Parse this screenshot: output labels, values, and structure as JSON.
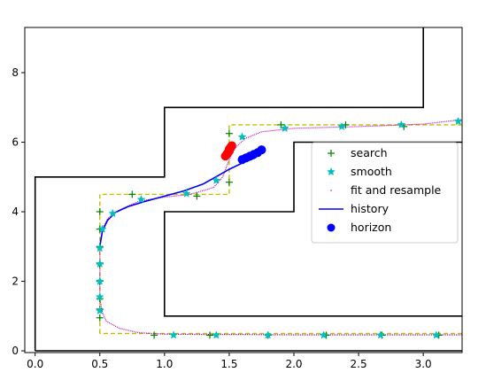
{
  "chart_data": {
    "type": "line",
    "title": "",
    "xlabel": "",
    "ylabel": "",
    "xlim": [
      -0.08,
      3.3
    ],
    "ylim": [
      -0.05,
      9.3
    ],
    "xticks": [
      0.0,
      0.5,
      1.0,
      1.5,
      2.0,
      2.5,
      3.0
    ],
    "xtick_labels": [
      "0.0",
      "0.5",
      "1.0",
      "1.5",
      "2.0",
      "2.5",
      "3.0"
    ],
    "yticks": [
      0,
      2,
      4,
      6,
      8
    ],
    "ytick_labels": [
      "0",
      "2",
      "4",
      "6",
      "8"
    ],
    "grid": false,
    "legend_position": "center-right",
    "legend": [
      {
        "label": "search",
        "marker": "plus",
        "color": "#008000"
      },
      {
        "label": "smooth",
        "marker": "star",
        "color": "#00bfbf"
      },
      {
        "label": "fit and resample",
        "marker": "dot",
        "color": "#bf00bf"
      },
      {
        "label": "history",
        "marker": "line",
        "color": "#0000ff"
      },
      {
        "label": "horizon",
        "marker": "circle",
        "color": "#0000ff"
      }
    ],
    "walls": [
      [
        [
          0,
          0
        ],
        [
          0,
          5
        ],
        [
          1,
          5
        ],
        [
          1,
          7
        ],
        [
          3,
          7
        ],
        [
          3,
          9.3
        ]
      ],
      [
        [
          0,
          0
        ],
        [
          3.3,
          0
        ]
      ],
      [
        [
          3.3,
          1
        ],
        [
          1,
          1
        ],
        [
          1,
          4
        ],
        [
          2,
          4
        ],
        [
          2,
          6
        ],
        [
          3.3,
          6
        ]
      ]
    ],
    "corridor": [
      [
        0.5,
        0.5
      ],
      [
        0.5,
        4.5
      ],
      [
        1.5,
        4.5
      ],
      [
        1.5,
        6.5
      ],
      [
        3.3,
        6.5
      ]
    ],
    "corridor_bottom": [
      [
        3.3,
        0.5
      ],
      [
        0.5,
        0.5
      ]
    ],
    "series": [
      {
        "name": "fit and resample",
        "style": "dotted",
        "color": "#bf00bf",
        "x": [
          3.3,
          3.0,
          2.5,
          2.0,
          1.6,
          1.3,
          1.0,
          0.8,
          0.65,
          0.55,
          0.52,
          0.5,
          0.5,
          0.5,
          0.5,
          0.52,
          0.56,
          0.65,
          0.8,
          1.0,
          1.2,
          1.38,
          1.45,
          1.5,
          1.55,
          1.62,
          1.75,
          2.0,
          2.5,
          3.0,
          3.3
        ],
        "y": [
          0.46,
          0.46,
          0.46,
          0.46,
          0.47,
          0.47,
          0.48,
          0.52,
          0.65,
          0.85,
          1.1,
          1.5,
          2.0,
          2.5,
          3.0,
          3.5,
          3.8,
          4.05,
          4.3,
          4.42,
          4.5,
          4.7,
          5.0,
          5.5,
          5.85,
          6.1,
          6.3,
          6.4,
          6.45,
          6.52,
          6.65
        ]
      },
      {
        "name": "history",
        "style": "line",
        "color": "#0000ff",
        "x": [
          0.5,
          0.52,
          0.56,
          0.62,
          0.72,
          0.85,
          1.0,
          1.15,
          1.3,
          1.42,
          1.5,
          1.6,
          1.7
        ],
        "y": [
          3.0,
          3.45,
          3.75,
          3.98,
          4.15,
          4.3,
          4.45,
          4.6,
          4.8,
          5.05,
          5.22,
          5.4,
          5.55
        ]
      },
      {
        "name": "search",
        "marker": "plus",
        "color": "#008000",
        "x": [
          0.5,
          0.5,
          0.5,
          0.5,
          0.5,
          0.5,
          0.5,
          0.5,
          0.75,
          1.25,
          1.5,
          1.5,
          0.92,
          1.35,
          1.8,
          2.25,
          2.68,
          3.12,
          1.9,
          2.4,
          2.85
        ],
        "y": [
          0.95,
          1.5,
          2.0,
          2.5,
          3.0,
          3.5,
          4.0,
          1.2,
          4.5,
          4.45,
          4.85,
          6.25,
          0.45,
          0.45,
          0.45,
          0.45,
          0.45,
          0.45,
          6.5,
          6.5,
          6.45
        ]
      },
      {
        "name": "smooth",
        "marker": "star",
        "color": "#00bfbf",
        "x": [
          0.5,
          0.5,
          0.5,
          0.5,
          0.5,
          0.52,
          0.6,
          0.82,
          1.17,
          1.4,
          1.6,
          1.93,
          2.37,
          2.83,
          3.27,
          1.07,
          1.4,
          1.8,
          2.23,
          2.67,
          3.1
        ],
        "y": [
          1.15,
          1.55,
          2.0,
          2.5,
          2.95,
          3.5,
          3.95,
          4.35,
          4.52,
          4.9,
          6.15,
          6.4,
          6.45,
          6.5,
          6.6,
          0.45,
          0.45,
          0.45,
          0.45,
          0.45,
          0.45
        ]
      },
      {
        "name": "horizon",
        "marker": "circle",
        "color": "#0000ff",
        "x": [
          1.6,
          1.63,
          1.66,
          1.69,
          1.72,
          1.75
        ],
        "y": [
          5.5,
          5.55,
          5.6,
          5.65,
          5.7,
          5.78
        ]
      },
      {
        "name": "",
        "marker": "circle",
        "color": "#ff0000",
        "x": [
          1.47,
          1.48,
          1.49,
          1.5,
          1.5,
          1.51,
          1.52
        ],
        "y": [
          5.6,
          5.65,
          5.7,
          5.75,
          5.8,
          5.85,
          5.9
        ]
      }
    ]
  }
}
